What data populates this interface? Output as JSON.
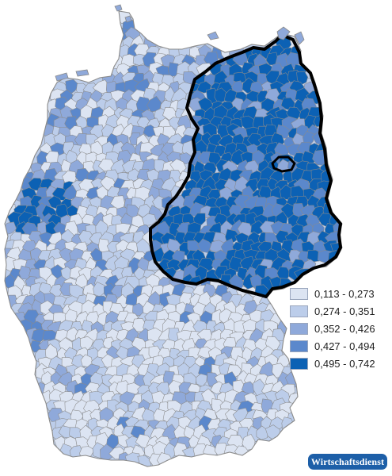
{
  "map": {
    "colors": {
      "class1": "#dce4f2",
      "class2": "#bccdea",
      "class3": "#8fa9da",
      "class4": "#5b88cc",
      "class5": "#0c61b4",
      "border": "#8a8a8a",
      "east_outline": "#000000"
    }
  },
  "legend": {
    "items": [
      {
        "label": "0,113 - 0,273",
        "color": "#dce4f2"
      },
      {
        "label": "0,274 - 0,351",
        "color": "#bccdea"
      },
      {
        "label": "0,352 - 0,426",
        "color": "#8fa9da"
      },
      {
        "label": "0,427 - 0,494",
        "color": "#5b88cc"
      },
      {
        "label": "0,495 - 0,742",
        "color": "#0c61b4"
      }
    ]
  },
  "source": {
    "label": "Wirtschaftsdienst"
  }
}
